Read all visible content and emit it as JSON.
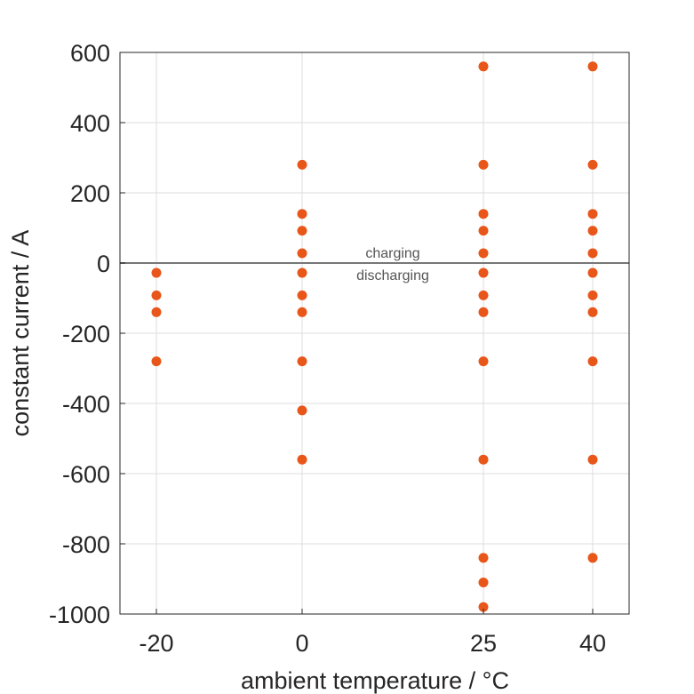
{
  "chart_data": {
    "type": "scatter",
    "xlabel": "ambient temperature / °C",
    "ylabel": "constant current / A",
    "xticks": [
      -20,
      0,
      25,
      40
    ],
    "yticks": [
      600,
      400,
      200,
      0,
      -200,
      -400,
      -600,
      -800,
      -1000
    ],
    "ylim": [
      -1000,
      600
    ],
    "grid": true,
    "zero_line": true,
    "annotations": {
      "above": "charging",
      "below": "discharging"
    },
    "colors": {
      "marker": "#e8561a",
      "zero_line": "#777777",
      "grid": "#dcdcdc"
    },
    "series": [
      {
        "points": [
          {
            "x": -20,
            "y": -28
          },
          {
            "x": -20,
            "y": -92
          },
          {
            "x": -20,
            "y": -140
          },
          {
            "x": -20,
            "y": -280
          },
          {
            "x": 0,
            "y": 280
          },
          {
            "x": 0,
            "y": 140
          },
          {
            "x": 0,
            "y": 92
          },
          {
            "x": 0,
            "y": 28
          },
          {
            "x": 0,
            "y": -28
          },
          {
            "x": 0,
            "y": -92
          },
          {
            "x": 0,
            "y": -140
          },
          {
            "x": 0,
            "y": -280
          },
          {
            "x": 0,
            "y": -420
          },
          {
            "x": 0,
            "y": -560
          },
          {
            "x": 25,
            "y": 560
          },
          {
            "x": 25,
            "y": 280
          },
          {
            "x": 25,
            "y": 140
          },
          {
            "x": 25,
            "y": 92
          },
          {
            "x": 25,
            "y": 28
          },
          {
            "x": 25,
            "y": -28
          },
          {
            "x": 25,
            "y": -92
          },
          {
            "x": 25,
            "y": -140
          },
          {
            "x": 25,
            "y": -280
          },
          {
            "x": 25,
            "y": -560
          },
          {
            "x": 25,
            "y": -840
          },
          {
            "x": 25,
            "y": -910
          },
          {
            "x": 25,
            "y": -980
          },
          {
            "x": 40,
            "y": 560
          },
          {
            "x": 40,
            "y": 280
          },
          {
            "x": 40,
            "y": 140
          },
          {
            "x": 40,
            "y": 92
          },
          {
            "x": 40,
            "y": 28
          },
          {
            "x": 40,
            "y": -28
          },
          {
            "x": 40,
            "y": -92
          },
          {
            "x": 40,
            "y": -140
          },
          {
            "x": 40,
            "y": -280
          },
          {
            "x": 40,
            "y": -560
          },
          {
            "x": 40,
            "y": -840
          }
        ]
      }
    ]
  }
}
